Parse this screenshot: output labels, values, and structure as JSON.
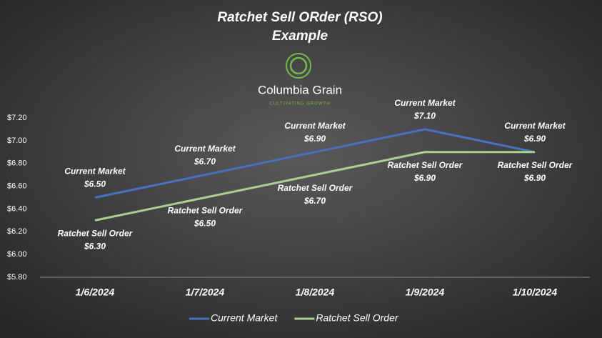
{
  "chart_data": {
    "type": "line",
    "title": "Ratchet Sell ORder (RSO)",
    "subtitle": "Example",
    "logo": {
      "name": "Columbia Grain",
      "tagline": "CULTIVATING GROWTH"
    },
    "categories": [
      "1/6/2024",
      "1/7/2024",
      "1/8/2024",
      "1/9/2024",
      "1/10/2024"
    ],
    "series": [
      {
        "name": "Current Market",
        "color": "#4472c4",
        "values": [
          6.5,
          6.7,
          6.9,
          7.1,
          6.9
        ],
        "value_labels": [
          "$6.50",
          "$6.70",
          "$6.90",
          "$7.10",
          "$6.90"
        ]
      },
      {
        "name": "Ratchet Sell Order",
        "color": "#a9d18e",
        "values": [
          6.3,
          6.5,
          6.7,
          6.9,
          6.9
        ],
        "value_labels": [
          "$6.30",
          "$6.50",
          "$6.70",
          "$6.90",
          "$6.90"
        ]
      }
    ],
    "ylim": [
      5.8,
      7.2
    ],
    "yticks": [
      {
        "value": 5.8,
        "label": "$5.80"
      },
      {
        "value": 6.0,
        "label": "$6.00"
      },
      {
        "value": 6.2,
        "label": "$6.20"
      },
      {
        "value": 6.4,
        "label": "$6.40"
      },
      {
        "value": 6.6,
        "label": "$6.60"
      },
      {
        "value": 6.8,
        "label": "$6.80"
      },
      {
        "value": 7.0,
        "label": "$7.00"
      },
      {
        "value": 7.2,
        "label": "$7.20"
      }
    ],
    "grid": false,
    "legend": "bottom"
  }
}
